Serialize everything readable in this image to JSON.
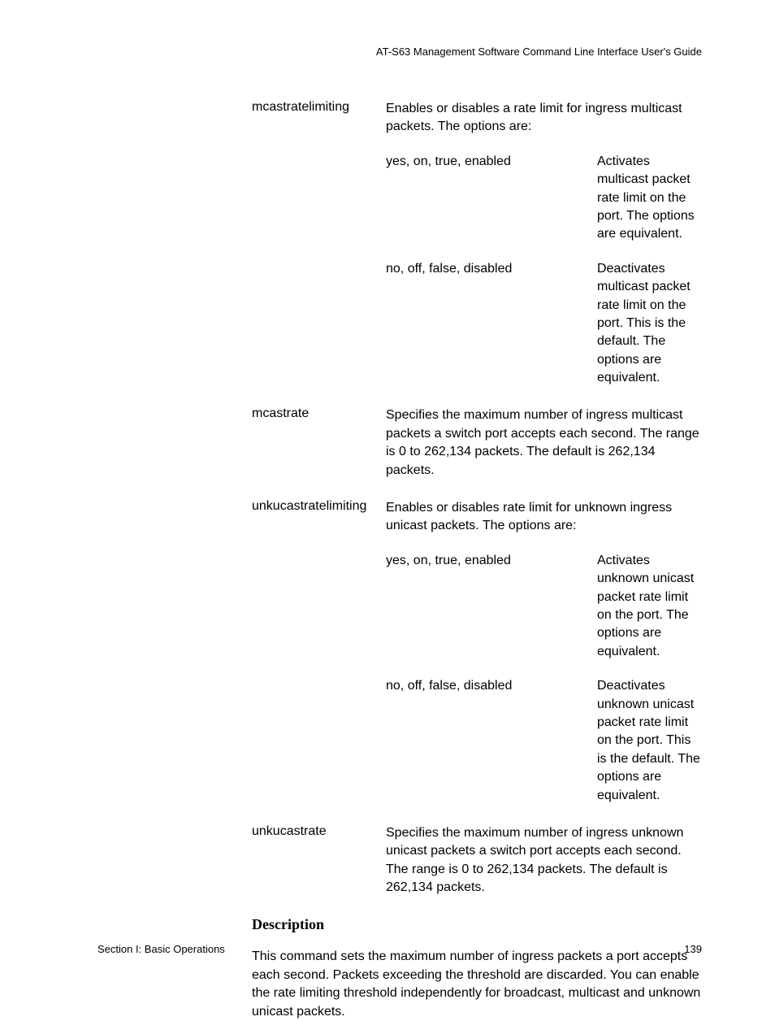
{
  "header": {
    "title": "AT-S63 Management Software Command Line Interface User's Guide"
  },
  "parameters": [
    {
      "name": "mcastratelimiting",
      "description": "Enables or disables a rate limit for ingress multicast packets. The options are:",
      "options": [
        {
          "key": "yes, on, true, enabled",
          "value": "Activates multicast packet rate limit on the port. The options are equivalent."
        },
        {
          "key": "no, off, false, disabled",
          "value": "Deactivates multicast packet rate limit on the port. This is the default. The options are equivalent."
        }
      ]
    },
    {
      "name": "mcastrate",
      "description": "Specifies the maximum number of ingress multicast packets a switch port accepts each second. The range is 0 to 262,134 packets. The default is 262,134 packets.",
      "options": []
    },
    {
      "name": "unkucastratelimiting",
      "description": "Enables or disables rate limit for unknown ingress unicast packets. The options are:",
      "options": [
        {
          "key": "yes, on, true, enabled",
          "value": "Activates unknown unicast packet rate limit on the port. The options are equivalent."
        },
        {
          "key": "no, off, false, disabled",
          "value": "Deactivates unknown unicast packet rate limit on the port. This is the default. The options are equivalent."
        }
      ]
    },
    {
      "name": "unkucastrate",
      "description": "Specifies the maximum number of ingress unknown unicast packets a switch port accepts each second. The range is 0 to 262,134 packets. The default is 262,134 packets.",
      "options": []
    }
  ],
  "sectionHeading": "Description",
  "descriptionBody": "This command sets the maximum number of ingress packets a port accepts each second. Packets exceeding the threshold are discarded. You can enable the rate limiting threshold independently for broadcast, multicast and unknown unicast packets.",
  "footer": {
    "sectionLabel": "Section I: Basic Operations",
    "pageNumber": "139"
  }
}
